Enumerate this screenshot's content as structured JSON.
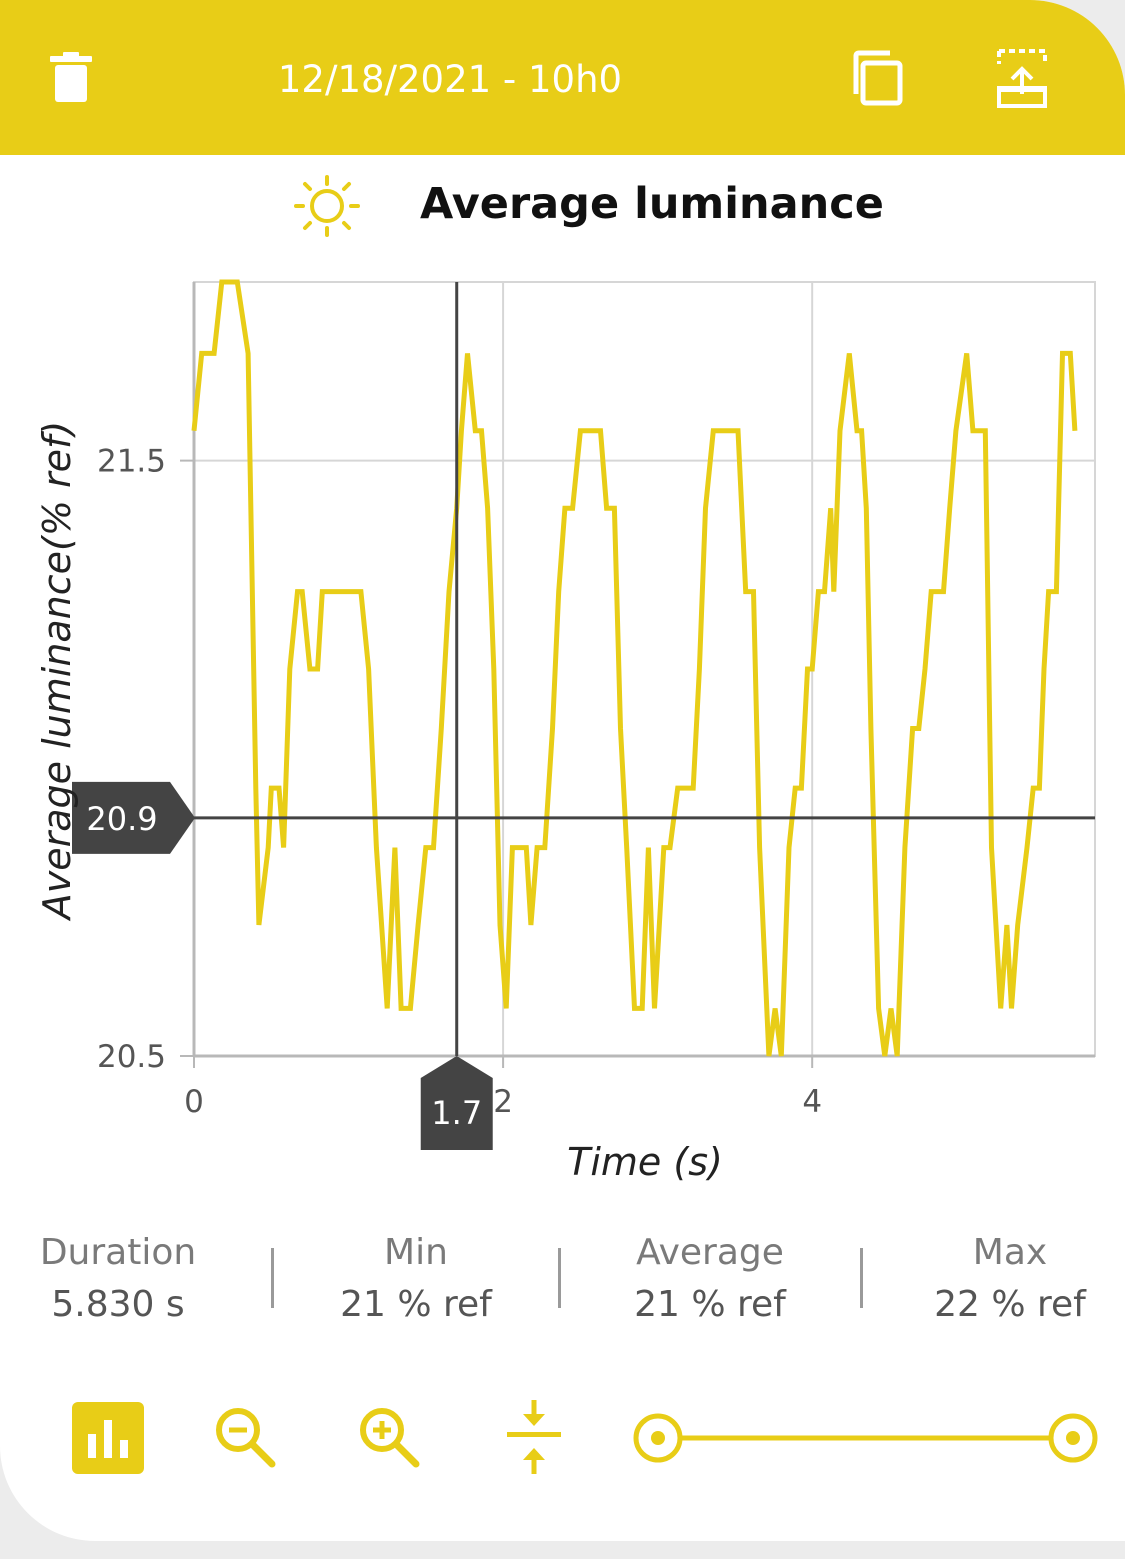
{
  "header": {
    "title": "12/18/2021 - 10h0",
    "icons": [
      "trash-icon",
      "copy-icon",
      "export-icon"
    ]
  },
  "heading": {
    "icon": "sun-icon",
    "title": "Average luminance"
  },
  "colors": {
    "accent": "#e8cd17",
    "line": "#e8cd17",
    "cursor": "#444444",
    "tooltip_bg": "#444444"
  },
  "chart_data": {
    "type": "line",
    "xlabel": "Time (s)",
    "ylabel": "Average luminance(% ref)",
    "xlim": [
      0,
      5.83
    ],
    "ylim": [
      20.5,
      21.8
    ],
    "x_ticks": [
      "0",
      "2",
      "4"
    ],
    "y_ticks": [
      "21.5",
      "20.5"
    ],
    "grid": true,
    "cursor": {
      "x": 1.7,
      "y": 20.9,
      "x_label": "1.7",
      "y_label": "20.9"
    },
    "series": [
      {
        "values": [
          [
            0.0,
            21.55
          ],
          [
            0.05,
            21.68
          ],
          [
            0.13,
            21.68
          ],
          [
            0.18,
            21.8
          ],
          [
            0.28,
            21.8
          ],
          [
            0.35,
            21.68
          ],
          [
            0.4,
            20.95
          ],
          [
            0.42,
            20.72
          ],
          [
            0.48,
            20.85
          ],
          [
            0.5,
            20.95
          ],
          [
            0.55,
            20.95
          ],
          [
            0.58,
            20.85
          ],
          [
            0.62,
            21.15
          ],
          [
            0.67,
            21.28
          ],
          [
            0.7,
            21.28
          ],
          [
            0.75,
            21.15
          ],
          [
            0.8,
            21.15
          ],
          [
            0.83,
            21.28
          ],
          [
            0.92,
            21.28
          ],
          [
            1.08,
            21.28
          ],
          [
            1.13,
            21.15
          ],
          [
            1.18,
            20.85
          ],
          [
            1.25,
            20.58
          ],
          [
            1.3,
            20.85
          ],
          [
            1.34,
            20.58
          ],
          [
            1.4,
            20.58
          ],
          [
            1.45,
            20.72
          ],
          [
            1.5,
            20.85
          ],
          [
            1.55,
            20.85
          ],
          [
            1.6,
            21.05
          ],
          [
            1.65,
            21.28
          ],
          [
            1.7,
            21.42
          ],
          [
            1.73,
            21.55
          ],
          [
            1.77,
            21.68
          ],
          [
            1.82,
            21.55
          ],
          [
            1.86,
            21.55
          ],
          [
            1.9,
            21.42
          ],
          [
            1.94,
            21.15
          ],
          [
            1.98,
            20.72
          ],
          [
            2.02,
            20.58
          ],
          [
            2.06,
            20.85
          ],
          [
            2.15,
            20.85
          ],
          [
            2.18,
            20.72
          ],
          [
            2.22,
            20.85
          ],
          [
            2.27,
            20.85
          ],
          [
            2.32,
            21.05
          ],
          [
            2.36,
            21.28
          ],
          [
            2.4,
            21.42
          ],
          [
            2.45,
            21.42
          ],
          [
            2.5,
            21.55
          ],
          [
            2.63,
            21.55
          ],
          [
            2.67,
            21.42
          ],
          [
            2.72,
            21.42
          ],
          [
            2.76,
            21.05
          ],
          [
            2.8,
            20.85
          ],
          [
            2.85,
            20.58
          ],
          [
            2.9,
            20.58
          ],
          [
            2.94,
            20.85
          ],
          [
            2.98,
            20.58
          ],
          [
            3.04,
            20.85
          ],
          [
            3.08,
            20.85
          ],
          [
            3.13,
            20.95
          ],
          [
            3.18,
            20.95
          ],
          [
            3.23,
            20.95
          ],
          [
            3.27,
            21.15
          ],
          [
            3.31,
            21.42
          ],
          [
            3.36,
            21.55
          ],
          [
            3.52,
            21.55
          ],
          [
            3.57,
            21.28
          ],
          [
            3.62,
            21.28
          ],
          [
            3.66,
            20.85
          ],
          [
            3.72,
            20.5
          ],
          [
            3.76,
            20.58
          ],
          [
            3.8,
            20.5
          ],
          [
            3.85,
            20.85
          ],
          [
            3.89,
            20.95
          ],
          [
            3.93,
            20.95
          ],
          [
            3.97,
            21.15
          ],
          [
            4.0,
            21.15
          ],
          [
            4.04,
            21.28
          ],
          [
            4.08,
            21.28
          ],
          [
            4.12,
            21.42
          ],
          [
            4.14,
            21.28
          ],
          [
            4.18,
            21.55
          ],
          [
            4.24,
            21.68
          ],
          [
            4.29,
            21.55
          ],
          [
            4.32,
            21.55
          ],
          [
            4.35,
            21.42
          ],
          [
            4.38,
            21.05
          ],
          [
            4.43,
            20.58
          ],
          [
            4.47,
            20.5
          ],
          [
            4.51,
            20.58
          ],
          [
            4.55,
            20.5
          ],
          [
            4.6,
            20.85
          ],
          [
            4.65,
            21.05
          ],
          [
            4.69,
            21.05
          ],
          [
            4.73,
            21.15
          ],
          [
            4.77,
            21.28
          ],
          [
            4.85,
            21.28
          ],
          [
            4.89,
            21.42
          ],
          [
            4.93,
            21.55
          ],
          [
            5.0,
            21.68
          ],
          [
            5.04,
            21.55
          ],
          [
            5.12,
            21.55
          ],
          [
            5.16,
            20.85
          ],
          [
            5.22,
            20.58
          ],
          [
            5.26,
            20.72
          ],
          [
            5.29,
            20.58
          ],
          [
            5.33,
            20.72
          ],
          [
            5.39,
            20.85
          ],
          [
            5.43,
            20.95
          ],
          [
            5.47,
            20.95
          ],
          [
            5.5,
            21.15
          ],
          [
            5.53,
            21.28
          ],
          [
            5.58,
            21.28
          ],
          [
            5.62,
            21.68
          ],
          [
            5.67,
            21.68
          ],
          [
            5.7,
            21.55
          ]
        ]
      }
    ]
  },
  "stats": [
    {
      "label": "Duration",
      "value": "5.830 s"
    },
    {
      "label": "Min",
      "value": "21 % ref"
    },
    {
      "label": "Average",
      "value": "21 % ref"
    },
    {
      "label": "Max",
      "value": "22 % ref"
    }
  ],
  "toolbar": {
    "icons": [
      "bar-chart-icon",
      "zoom-out-icon",
      "zoom-in-icon",
      "compress-vertical-icon",
      "range-slider"
    ],
    "range": {
      "start_fraction": 0.0,
      "end_fraction": 1.0
    }
  }
}
